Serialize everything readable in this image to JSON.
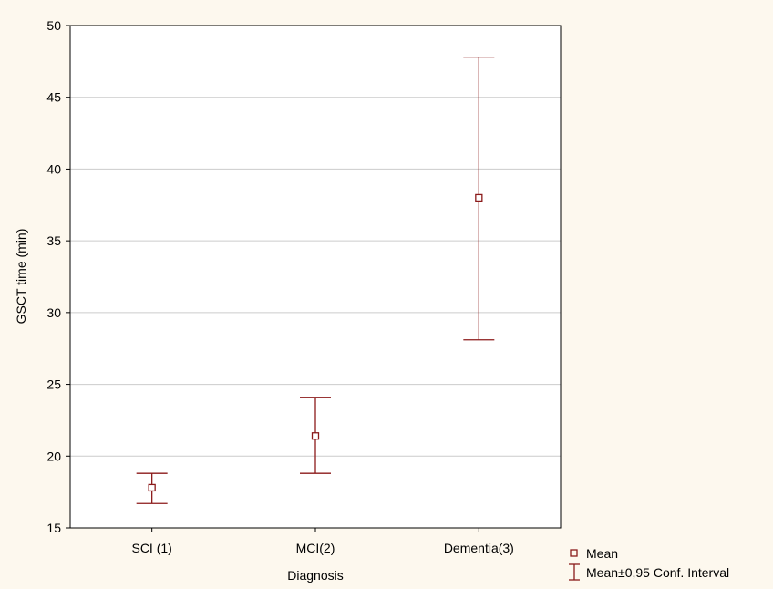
{
  "colors": {
    "background": "#fdf8ee",
    "plot_background": "#ffffff",
    "gridline": "#cccccc",
    "series": "#8b1a1a"
  },
  "chart_data": {
    "type": "errorbar",
    "title": "",
    "xlabel": "Diagnosis",
    "ylabel": "GSCT time (min)",
    "categories": [
      "SCI (1)",
      "MCI(2)",
      "Dementia(3)"
    ],
    "series": [
      {
        "name": "Mean",
        "values": [
          17.8,
          21.4,
          38.0
        ],
        "ci_lower": [
          16.7,
          18.8,
          28.1
        ],
        "ci_upper": [
          18.8,
          24.1,
          47.8
        ],
        "marker": "hollow-square"
      }
    ],
    "ylim": [
      15,
      50
    ],
    "yticks": [
      15,
      20,
      25,
      30,
      35,
      40,
      45,
      50
    ],
    "grid": true,
    "legend": {
      "position": "bottom-right",
      "entries": [
        "Mean",
        "Mean±0,95 Conf. Interval"
      ]
    }
  }
}
